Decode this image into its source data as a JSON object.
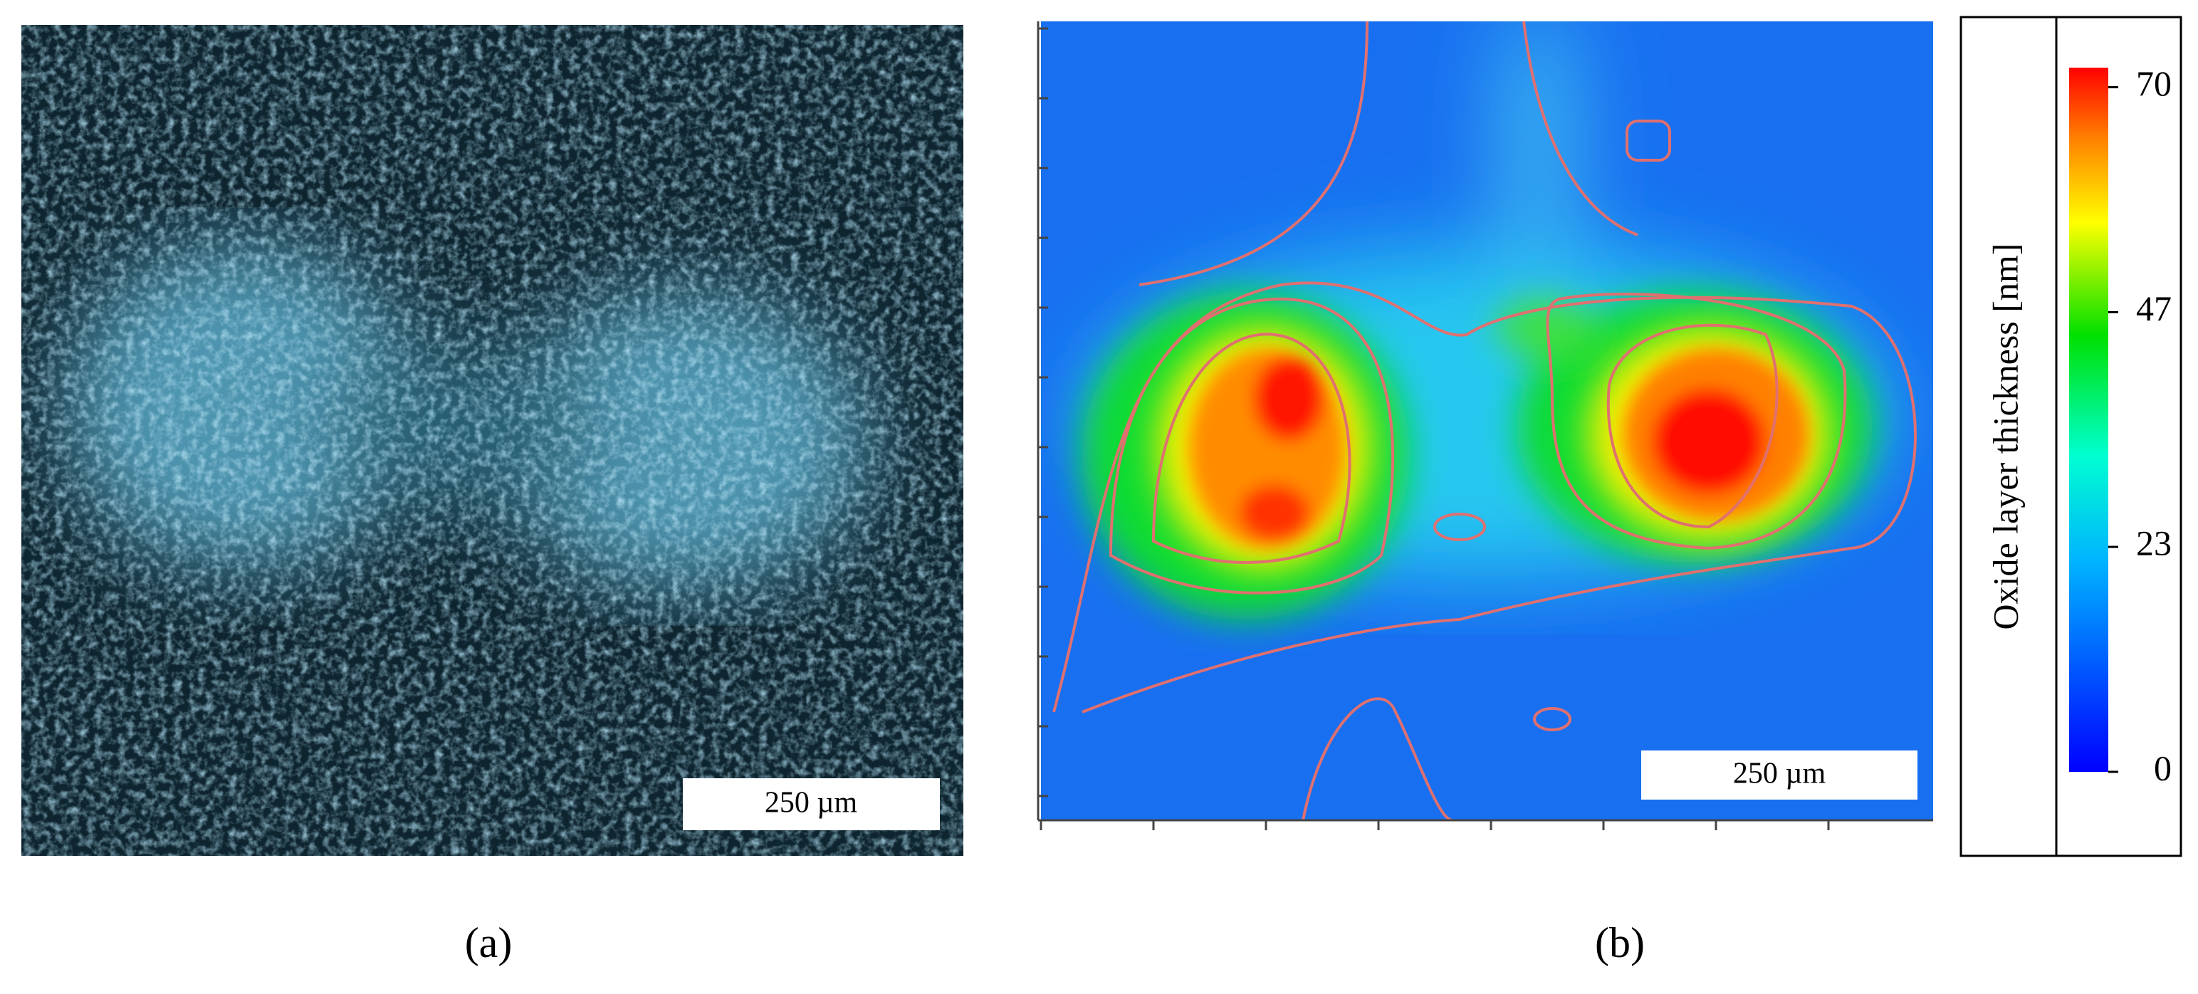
{
  "panels": [
    {
      "label": "(a)",
      "scale_bar": "250 µm"
    },
    {
      "label": "(b)",
      "scale_bar": "250 µm",
      "colorbar": {
        "title": "Oxide layer thickness [nm]",
        "lim": [
          0,
          72
        ],
        "ticks": [
          0,
          23,
          47,
          70
        ]
      }
    }
  ]
}
